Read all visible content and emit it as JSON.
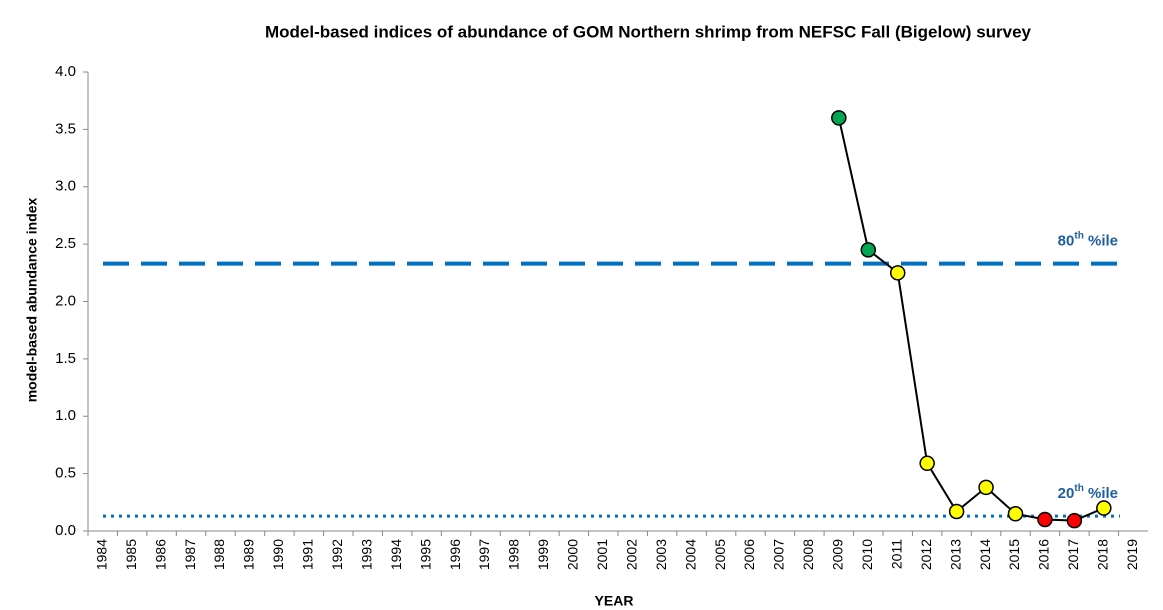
{
  "chart_data": {
    "type": "line",
    "title": "Model-based indices of abundance of GOM Northern shrimp from NEFSC Fall (Bigelow) survey",
    "x_label": "YEAR",
    "y_label": "model-based abundance index",
    "categories": [
      "1984",
      "1985",
      "1986",
      "1987",
      "1988",
      "1989",
      "1990",
      "1991",
      "1992",
      "1993",
      "1994",
      "1995",
      "1996",
      "1997",
      "1998",
      "1999",
      "2000",
      "2001",
      "2002",
      "2003",
      "2004",
      "2005",
      "2006",
      "2007",
      "2008",
      "2009",
      "2010",
      "2011",
      "2012",
      "2013",
      "2014",
      "2015",
      "2016",
      "2017",
      "2018",
      "2019"
    ],
    "series": [
      {
        "color": "#000000",
        "values": [
          null,
          null,
          null,
          null,
          null,
          null,
          null,
          null,
          null,
          null,
          null,
          null,
          null,
          null,
          null,
          null,
          null,
          null,
          null,
          null,
          null,
          null,
          null,
          null,
          null,
          3.6,
          2.45,
          2.25,
          0.59,
          0.17,
          0.38,
          0.15,
          0.1,
          0.09,
          0.2,
          null
        ],
        "point_colors": [
          null,
          null,
          null,
          null,
          null,
          null,
          null,
          null,
          null,
          null,
          null,
          null,
          null,
          null,
          null,
          null,
          null,
          null,
          null,
          null,
          null,
          null,
          null,
          null,
          null,
          "#00a651",
          "#00a651",
          "#ffff00",
          "#ffff00",
          "#ffff00",
          "#ffff00",
          "#ffff00",
          "#ff0000",
          "#ff0000",
          "#ffff00",
          null
        ]
      }
    ],
    "reference_lines": [
      {
        "value": 2.33,
        "label": [
          "80",
          "th",
          " %ile"
        ],
        "style": "dashed",
        "color": "#0070c0"
      },
      {
        "value": 0.13,
        "label": [
          "20",
          "th",
          " %ile"
        ],
        "style": "dotted",
        "color": "#0070c0"
      }
    ],
    "ylim": [
      0,
      4
    ],
    "yticks": [
      {
        "value": 0,
        "label": "0.0"
      },
      0.5,
      {
        "value": 1,
        "label": "1.0"
      },
      1.5,
      {
        "value": 2,
        "label": "2.0"
      },
      2.5,
      {
        "value": 3,
        "label": "3.0"
      },
      3.5,
      {
        "value": 4,
        "label": "4.0"
      }
    ],
    "grid": false
  }
}
